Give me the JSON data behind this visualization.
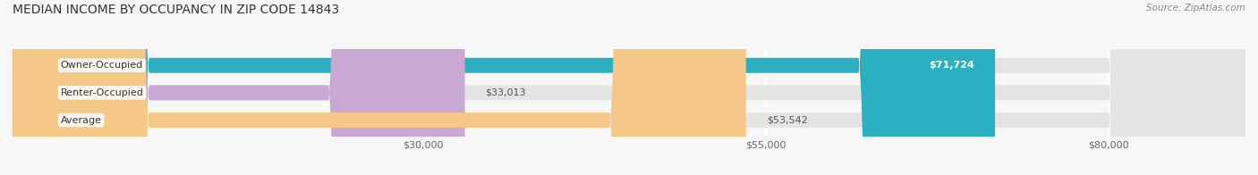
{
  "title": "MEDIAN INCOME BY OCCUPANCY IN ZIP CODE 14843",
  "source": "Source: ZipAtlas.com",
  "categories": [
    "Owner-Occupied",
    "Renter-Occupied",
    "Average"
  ],
  "values": [
    71724,
    33013,
    53542
  ],
  "bar_colors": [
    "#2ab0c0",
    "#c9a8d4",
    "#f5c887"
  ],
  "bar_bg_color": "#e4e4e4",
  "labels": [
    "$71,724",
    "$33,013",
    "$53,542"
  ],
  "x_ticks": [
    30000,
    55000,
    80000
  ],
  "x_tick_labels": [
    "$30,000",
    "$55,000",
    "$80,000"
  ],
  "x_max": 90000,
  "x_min": 0,
  "background_color": "#f7f7f7",
  "title_fontsize": 10,
  "bar_label_fontsize": 8,
  "axis_label_fontsize": 8,
  "category_fontsize": 8
}
